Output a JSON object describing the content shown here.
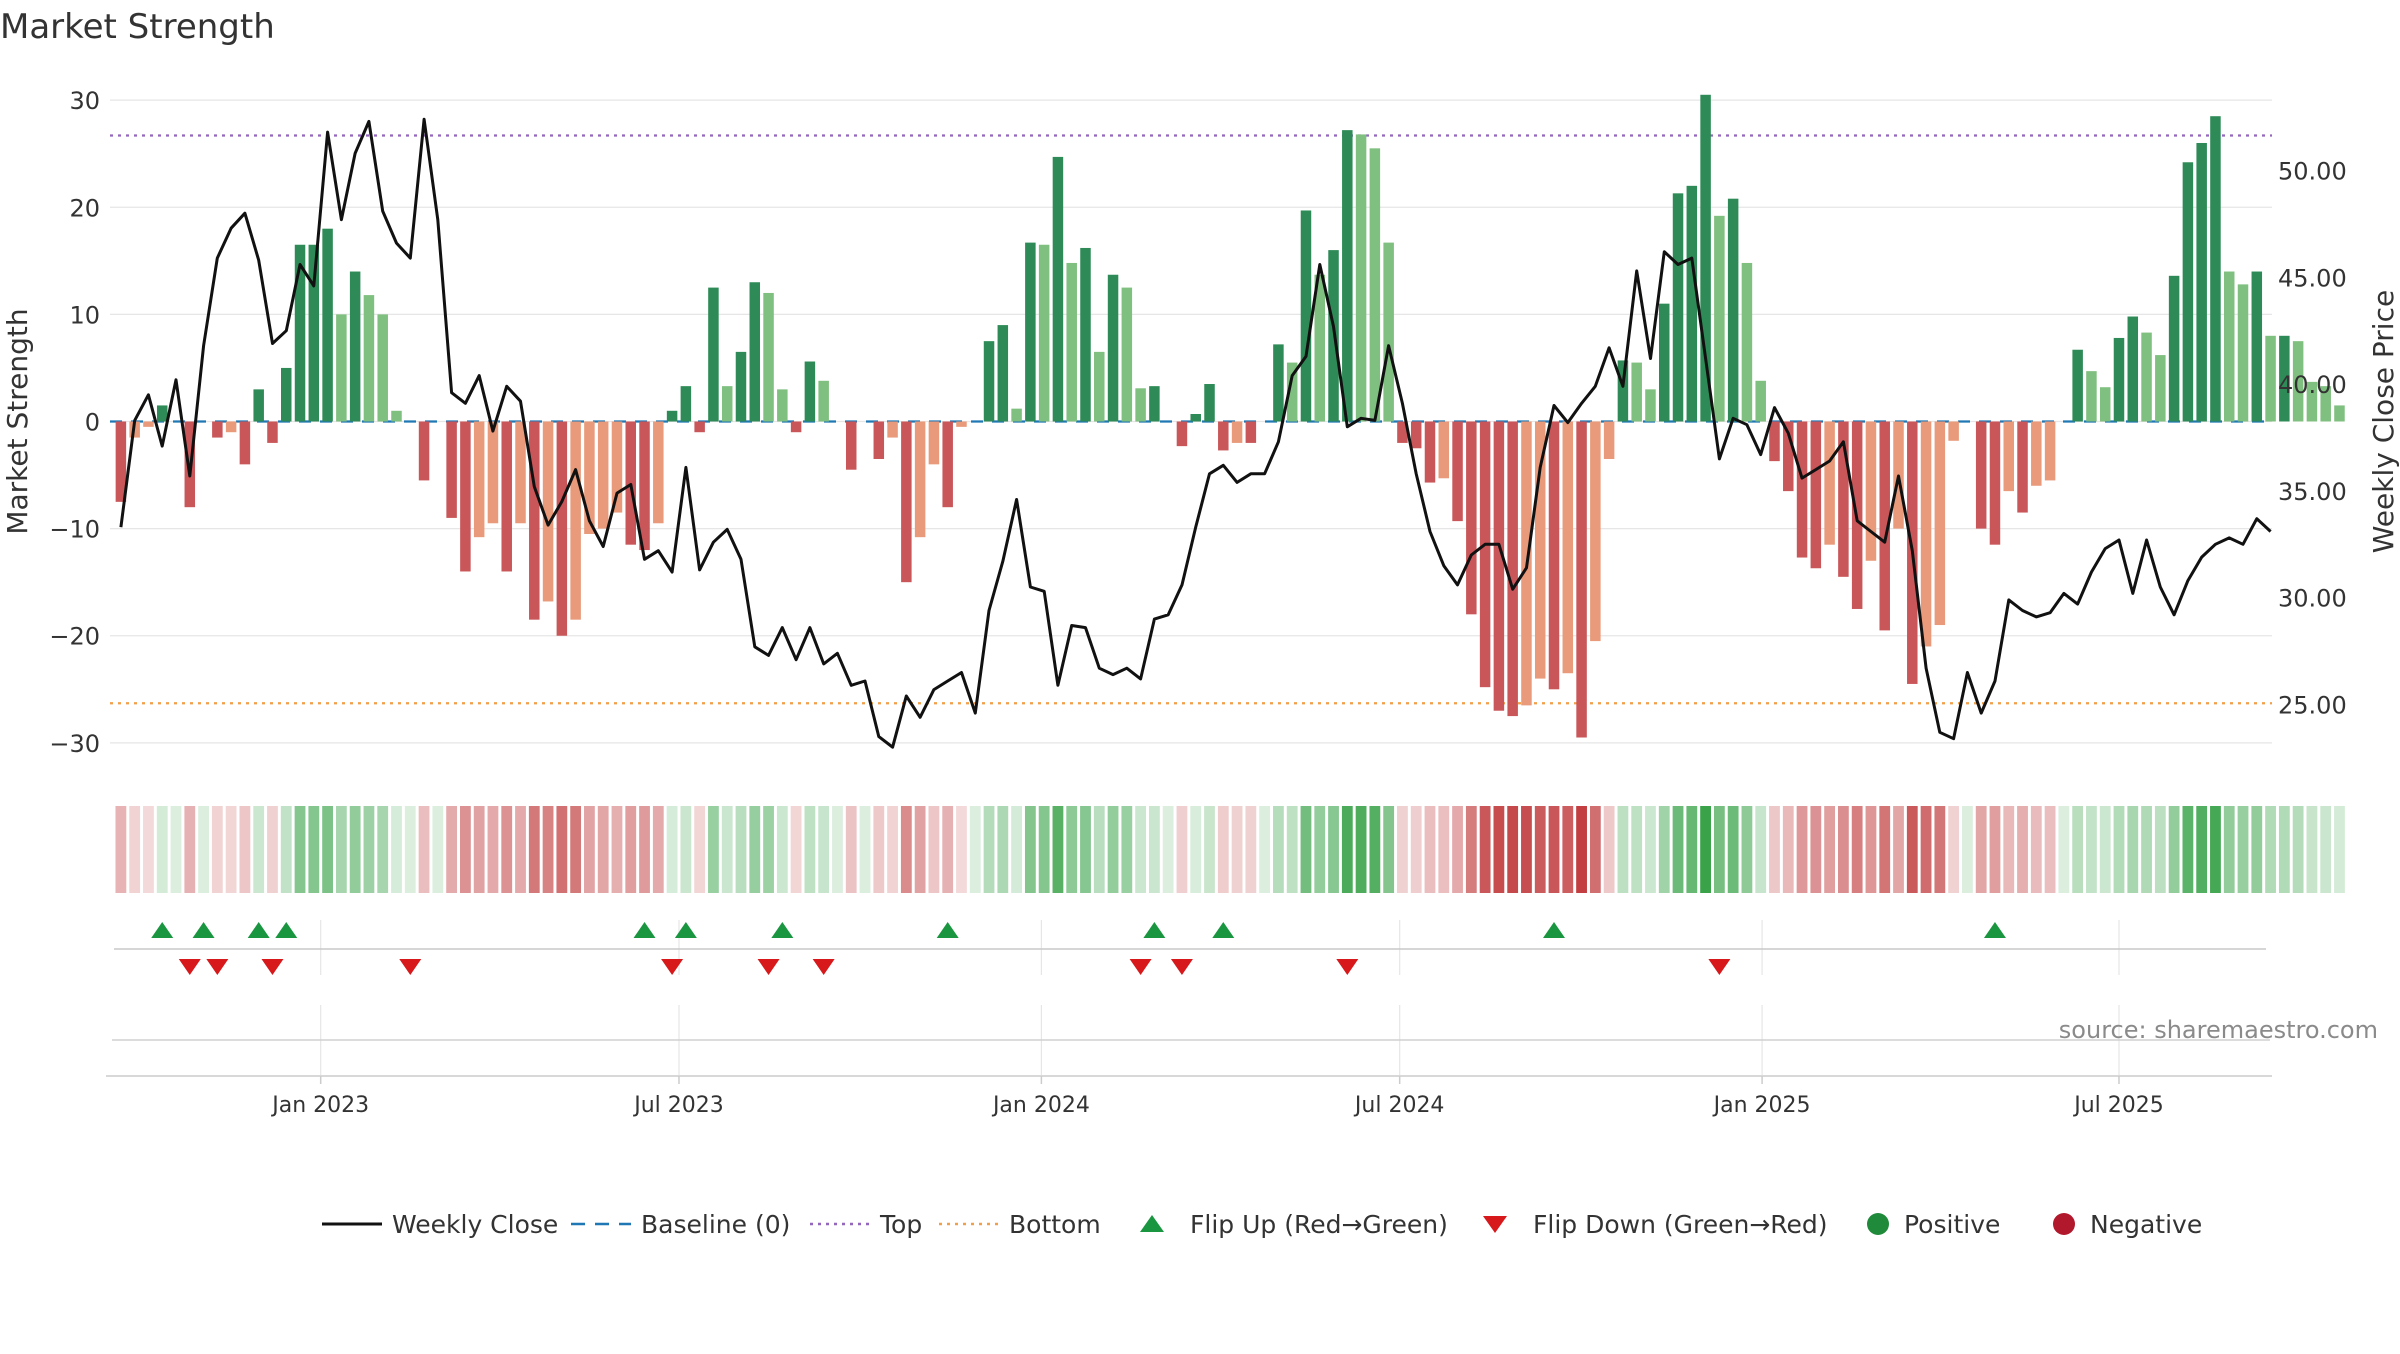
{
  "chart_data": {
    "type": "bar",
    "title": "Market Strength",
    "ylabel": "Market Strength",
    "y2label": "Weekly Close Price",
    "ylim": [
      -33,
      33
    ],
    "y2lim": [
      21.7,
      54.8
    ],
    "top_level": 26.7,
    "bottom_level": -26.3,
    "yticks": [
      30,
      20,
      10,
      0,
      -10,
      -20,
      -30
    ],
    "yticks_labels": [
      "30",
      "20",
      "10",
      "0",
      "−10",
      "−20",
      "−30"
    ],
    "y2ticks": [
      50,
      45,
      40,
      35,
      30,
      25
    ],
    "y2ticks_labels": [
      "50.00",
      "45.00",
      "40.00",
      "35.00",
      "30.00",
      "25.00"
    ],
    "xticks": [
      {
        "label": "Jan 2023",
        "week": 14.5
      },
      {
        "label": "Jul 2023",
        "week": 40.5
      },
      {
        "label": "Jan 2024",
        "week": 66.8
      },
      {
        "label": "Jul 2024",
        "week": 92.8
      },
      {
        "label": "Jan 2025",
        "week": 119.1
      },
      {
        "label": "Jul 2025",
        "week": 145
      }
    ],
    "strength": [
      -7.5,
      -1.5,
      -0.5,
      1.5,
      0,
      -8,
      0,
      -1.5,
      -1,
      -4,
      3,
      -2,
      5,
      16.5,
      16.5,
      18,
      10,
      14,
      11.8,
      10,
      1,
      0,
      -5.5,
      0,
      -9,
      -14,
      -10.8,
      -9.5,
      -14,
      -9.5,
      -18.5,
      -16.8,
      -20,
      -18.5,
      -10.5,
      -10,
      -8.5,
      -11.5,
      -12,
      -9.5,
      1,
      3.3,
      -1,
      12.5,
      3.3,
      6.5,
      13,
      12,
      3,
      -1,
      5.6,
      3.8,
      0,
      -4.5,
      0,
      -3.5,
      -1.5,
      -15,
      -10.8,
      -4,
      -8,
      -0.5,
      0,
      7.5,
      9,
      1.2,
      16.7,
      16.5,
      24.7,
      14.8,
      16.2,
      6.5,
      13.7,
      12.5,
      3.1,
      3.3,
      0,
      -2.3,
      0.7,
      3.5,
      -2.7,
      -2,
      -2,
      0,
      7.2,
      5.5,
      19.7,
      13.7,
      16,
      27.2,
      26.8,
      25.5,
      16.7,
      -2,
      -2.5,
      -5.7,
      -5.3,
      -9.3,
      -18,
      -24.8,
      -27,
      -27.5,
      -26.5,
      -24,
      -25,
      -23.5,
      -29.5,
      -20.5,
      -3.5,
      5.7,
      5.5,
      3,
      11,
      21.3,
      22,
      30.5,
      19.2,
      20.8,
      14.8,
      3.8,
      -3.7,
      -6.5,
      -12.7,
      -13.7,
      -11.5,
      -14.5,
      -17.5,
      -13,
      -19.5,
      -10,
      -24.5,
      -21,
      -19,
      -1.8,
      0,
      -10,
      -11.5,
      -6.5,
      -8.5,
      -6,
      -5.5,
      0,
      6.7,
      4.7,
      3.2,
      7.8,
      9.8,
      8.3,
      6.2,
      13.6,
      24.2,
      26,
      28.5,
      14,
      12.8,
      14,
      8,
      8,
      7.5,
      3.7,
      3.3,
      1.5
    ],
    "close": [
      33.3,
      38.3,
      39.5,
      37.1,
      40.2,
      35.7,
      41.8,
      45.9,
      47.3,
      48.0,
      45.8,
      41.9,
      42.5,
      45.6,
      44.6,
      51.8,
      47.7,
      50.8,
      52.3,
      48.1,
      46.6,
      45.9,
      52.4,
      47.7,
      39.6,
      39.1,
      40.4,
      37.8,
      39.9,
      39.2,
      35.2,
      33.4,
      34.5,
      36.0,
      33.6,
      32.4,
      34.9,
      35.3,
      31.8,
      32.2,
      31.2,
      36.1,
      31.3,
      32.6,
      33.2,
      31.8,
      27.7,
      27.3,
      28.6,
      27.1,
      28.6,
      26.9,
      27.4,
      25.9,
      26.1,
      23.5,
      23.0,
      25.4,
      24.4,
      25.7,
      26.1,
      26.5,
      24.6,
      29.4,
      31.7,
      34.6,
      30.5,
      30.3,
      25.9,
      28.7,
      28.6,
      26.7,
      26.4,
      26.7,
      26.2,
      29.0,
      29.2,
      30.6,
      33.3,
      35.8,
      36.2,
      35.4,
      35.8,
      35.8,
      37.3,
      40.4,
      41.3,
      45.6,
      42.7,
      38.0,
      38.4,
      38.3,
      41.8,
      39.1,
      35.8,
      33.1,
      31.5,
      30.6,
      32.0,
      32.5,
      32.5,
      30.4,
      31.4,
      36.1,
      39.0,
      38.2,
      39.1,
      39.9,
      41.7,
      39.9,
      45.3,
      41.2,
      46.2,
      45.6,
      45.9,
      41.2,
      36.5,
      38.4,
      38.1,
      36.7,
      38.9,
      37.7,
      35.6,
      36.0,
      36.4,
      37.3,
      33.6,
      33.1,
      32.6,
      35.7,
      32.2,
      26.7,
      23.7,
      23.4,
      26.5,
      24.6,
      26.1,
      29.9,
      29.4,
      29.1,
      29.3,
      30.2,
      29.7,
      31.2,
      32.3,
      32.7,
      30.2,
      32.7,
      30.5,
      29.2,
      30.8,
      31.9,
      32.5,
      32.8,
      32.5,
      33.7,
      33.1
    ],
    "flip_up_weeks": [
      3,
      6,
      10,
      12,
      38,
      41,
      48,
      60,
      75,
      80,
      104,
      136
    ],
    "flip_down_weeks": [
      5,
      7,
      11,
      21,
      40,
      47,
      51,
      74,
      77,
      89,
      116
    ],
    "source": "source: sharemaestro.com",
    "legend": [
      {
        "label": "Weekly Close",
        "kind": "line",
        "color": "#111111"
      },
      {
        "label": "Baseline (0)",
        "kind": "dash",
        "color": "#1f77b4"
      },
      {
        "label": "Top",
        "kind": "dot",
        "color": "#9467bd"
      },
      {
        "label": "Bottom",
        "kind": "dot",
        "color": "#f0a04b"
      },
      {
        "label": "Flip Up (Red→Green)",
        "kind": "tri-up",
        "color": "#1a9641"
      },
      {
        "label": "Flip Down (Green→Red)",
        "kind": "tri-down",
        "color": "#d7191c"
      },
      {
        "label": "Positive",
        "kind": "circle",
        "color": "#1f8a3a"
      },
      {
        "label": "Negative",
        "kind": "circle",
        "color": "#b2182b"
      }
    ],
    "colors": {
      "pos_strong": "#2e8b57",
      "pos_weak": "#7fbf7f",
      "neg_strong": "#c9575a",
      "neg_weak": "#e89a7a",
      "grid": "#e6e6e6",
      "axis_text": "#333333"
    }
  }
}
